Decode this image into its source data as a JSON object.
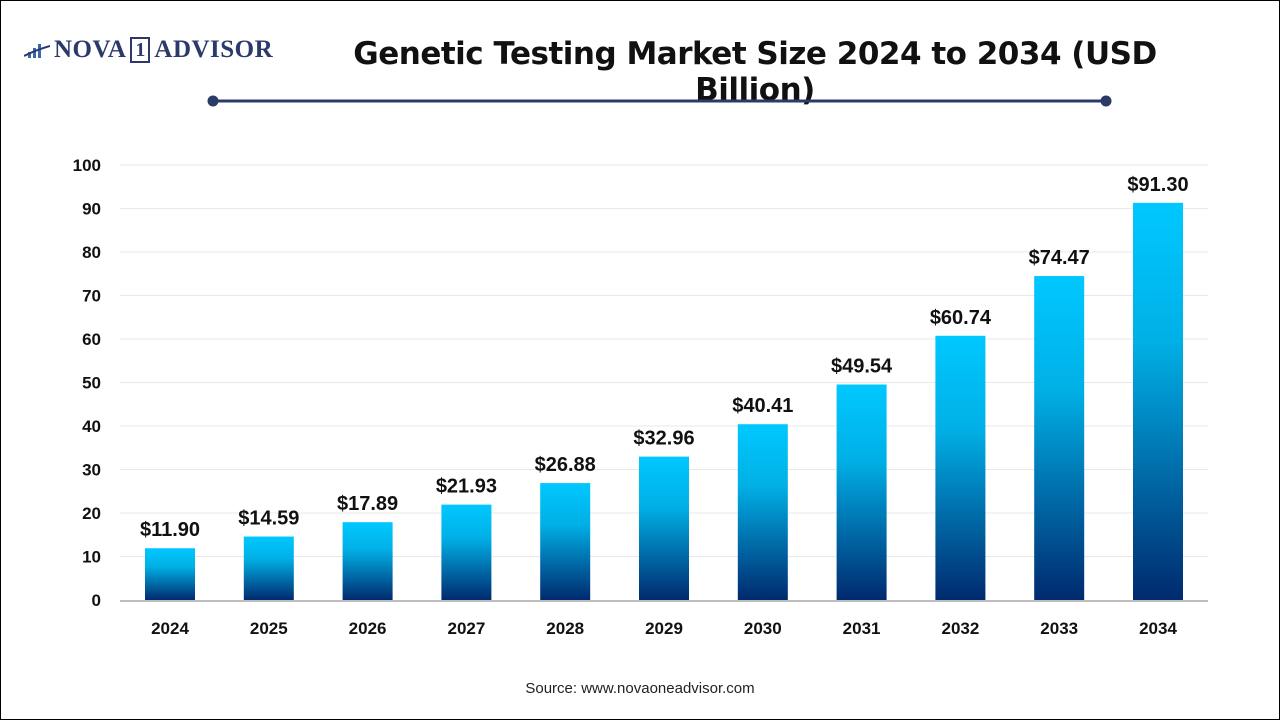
{
  "logo": {
    "text": "NOVA",
    "number": "1",
    "text2": "ADVISOR"
  },
  "source": "Source: www.novaoneadvisor.com",
  "colors": {
    "bar_top": "#00C8FF",
    "bar_bottom": "#002A6E",
    "title_rule": "#2b3a67"
  },
  "chart_data": {
    "type": "bar",
    "title": "Genetic Testing Market Size 2024 to 2034 (USD Billion)",
    "categories": [
      "2024",
      "2025",
      "2026",
      "2027",
      "2028",
      "2029",
      "2030",
      "2031",
      "2032",
      "2033",
      "2034"
    ],
    "values": [
      11.9,
      14.59,
      17.89,
      21.93,
      26.88,
      32.96,
      40.41,
      49.54,
      60.74,
      74.47,
      91.3
    ],
    "data_labels": [
      "$11.90",
      "$14.59",
      "$17.89",
      "$21.93",
      "$26.88",
      "$32.96",
      "$40.41",
      "$49.54",
      "$60.74",
      "$74.47",
      "$91.30"
    ],
    "yticks": [
      "0",
      "10",
      "20",
      "30",
      "40",
      "50",
      "60",
      "70",
      "80",
      "90",
      "100"
    ],
    "ylim": [
      0,
      100
    ],
    "xlabel": "",
    "ylabel": "",
    "grid": true,
    "legend": "none"
  }
}
